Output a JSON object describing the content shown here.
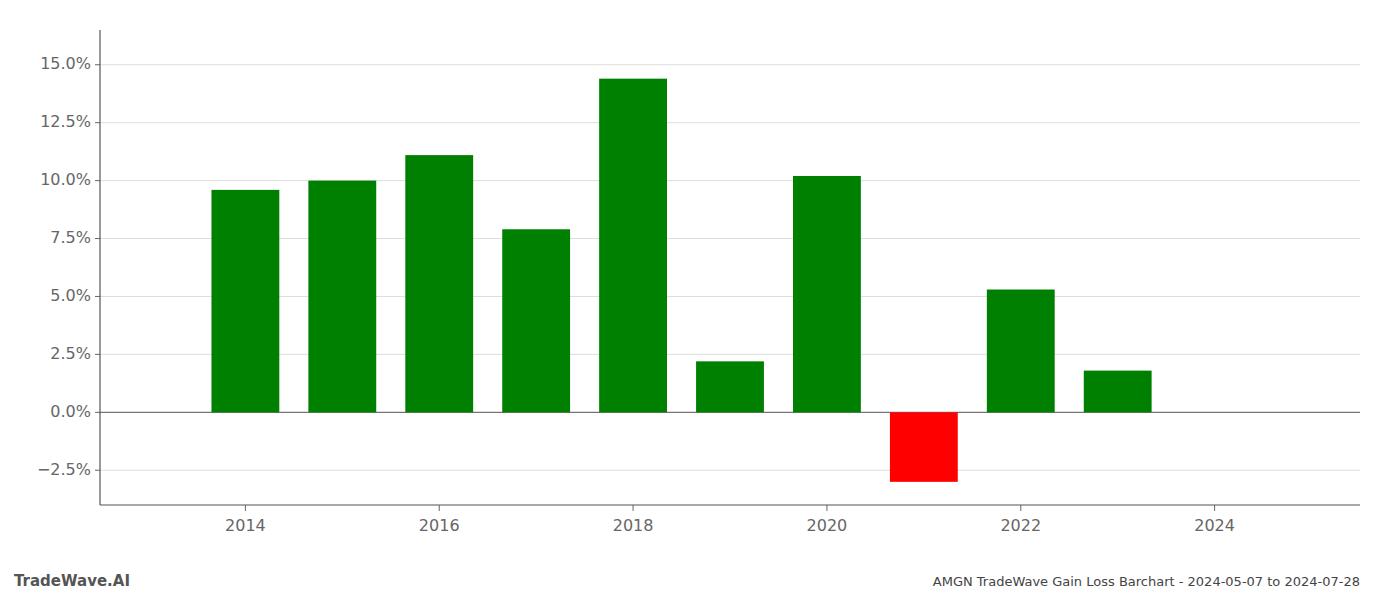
{
  "chart_data": {
    "type": "bar",
    "title": "AMGN TradeWave Gain Loss Barchart - 2024-05-07 to 2024-07-28",
    "annotations": [
      "TradeWave.AI"
    ],
    "x": [
      2014,
      2015,
      2016,
      2017,
      2018,
      2019,
      2020,
      2021,
      2022,
      2023
    ],
    "values": [
      0.096,
      0.1,
      0.111,
      0.079,
      0.144,
      0.022,
      0.102,
      -0.03,
      0.053,
      0.018
    ],
    "colors": [
      "#008000",
      "#008000",
      "#008000",
      "#008000",
      "#008000",
      "#008000",
      "#008000",
      "#ff0000",
      "#008000",
      "#008000"
    ],
    "xlim": [
      2012.5,
      2025.5
    ],
    "xticks": [
      2014,
      2016,
      2018,
      2020,
      2022,
      2024
    ],
    "ylim": [
      -0.04,
      0.165
    ],
    "yticks": [
      {
        "value": -0.025,
        "label": "−2.5%"
      },
      {
        "value": 0.0,
        "label": "0.0%"
      },
      {
        "value": 0.025,
        "label": "2.5%"
      },
      {
        "value": 0.05,
        "label": "5.0%"
      },
      {
        "value": 0.075,
        "label": "7.5%"
      },
      {
        "value": 0.1,
        "label": "10.0%"
      },
      {
        "value": 0.125,
        "label": "12.5%"
      },
      {
        "value": 0.15,
        "label": "15.0%"
      }
    ],
    "grid": true
  }
}
